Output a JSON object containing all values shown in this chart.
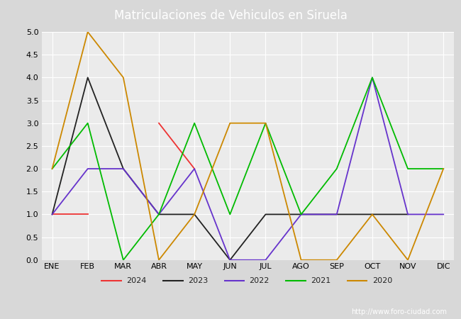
{
  "title": "Matriculaciones de Vehiculos en Siruela",
  "header_color": "#4a7abf",
  "bg_color": "#d8d8d8",
  "plot_bg_color": "#ebebeb",
  "months": [
    "ENE",
    "FEB",
    "MAR",
    "ABR",
    "MAY",
    "JUN",
    "JUL",
    "AGO",
    "SEP",
    "OCT",
    "NOV",
    "DIC"
  ],
  "series_order": [
    "2024",
    "2023",
    "2022",
    "2021",
    "2020"
  ],
  "series": {
    "2024": {
      "data": [
        1,
        1,
        null,
        3,
        2,
        null,
        null,
        null,
        null,
        null,
        null,
        null
      ],
      "color": "#ee3333",
      "label": "2024"
    },
    "2023": {
      "data": [
        1,
        4,
        2,
        1,
        1,
        0,
        1,
        1,
        1,
        1,
        1,
        null
      ],
      "color": "#222222",
      "label": "2023"
    },
    "2022": {
      "data": [
        1,
        2,
        2,
        1,
        2,
        0,
        0,
        1,
        1,
        4,
        1,
        1
      ],
      "color": "#6633cc",
      "label": "2022"
    },
    "2021": {
      "data": [
        2,
        3,
        0,
        1,
        3,
        1,
        3,
        1,
        2,
        4,
        2,
        2
      ],
      "color": "#00bb00",
      "label": "2021"
    },
    "2020": {
      "data": [
        2,
        5,
        4,
        0,
        1,
        3,
        3,
        0,
        0,
        1,
        0,
        2
      ],
      "color": "#cc8800",
      "label": "2020"
    }
  },
  "ylim": [
    0.0,
    5.0
  ],
  "yticks": [
    0.0,
    0.5,
    1.0,
    1.5,
    2.0,
    2.5,
    3.0,
    3.5,
    4.0,
    4.5,
    5.0
  ],
  "watermark": "http://www.foro-ciudad.com",
  "line_width": 1.3
}
